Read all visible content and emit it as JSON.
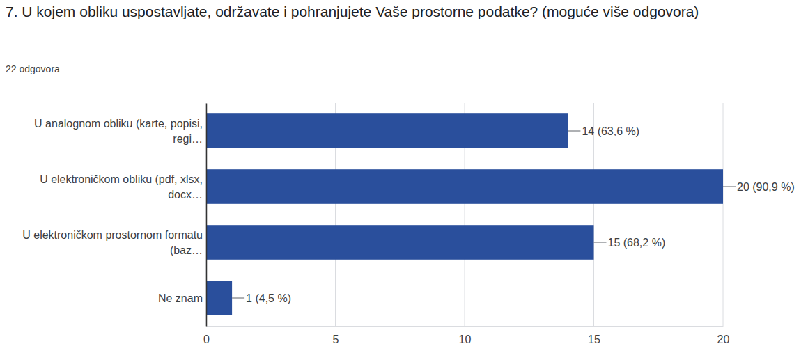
{
  "chart_data": {
    "type": "bar",
    "orientation": "horizontal",
    "title": "7. U kojem obliku uspostavljate, održavate i pohranjujete Vaše prostorne podatke? (moguće više odgovora)",
    "subtitle": "22 odgovora",
    "categories": [
      "U analognom obliku (karte, popisi, regi…",
      "U elektroničkom obliku (pdf, xlsx, docx…",
      "U elektroničkom prostornom formatu (baz…",
      "Ne znam"
    ],
    "values": [
      14,
      20,
      15,
      1
    ],
    "value_labels": [
      "14 (63,6 %)",
      "20 (90,9 %)",
      "15 (68,2 %)",
      "1 (4,5 %)"
    ],
    "color": "#2a4f9c",
    "xlim": [
      0,
      20
    ],
    "xticks": [
      0,
      5,
      10,
      15,
      20
    ],
    "grid": true,
    "data_labels": true
  }
}
